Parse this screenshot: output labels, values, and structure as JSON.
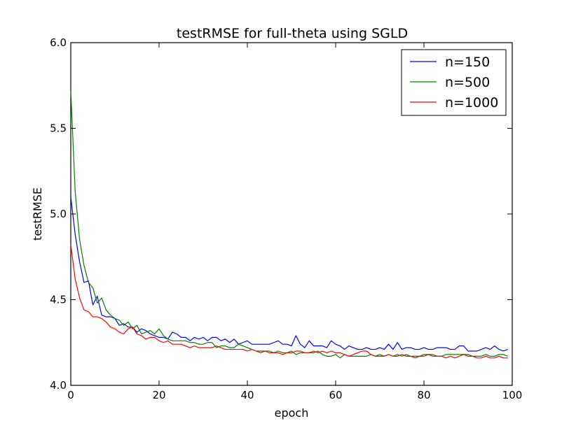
{
  "chart_data": {
    "type": "line",
    "title": "testRMSE for full-theta using SGLD",
    "xlabel": "epoch",
    "ylabel": "testRMSE",
    "xlim": [
      0,
      100
    ],
    "ylim": [
      4.0,
      6.0
    ],
    "x_ticks": [
      "0",
      "20",
      "40",
      "60",
      "80",
      "100"
    ],
    "y_ticks": [
      "4.0",
      "4.5",
      "5.0",
      "5.5",
      "6.0"
    ],
    "legend": "top-right",
    "grid": false,
    "series": [
      {
        "name": "n=150",
        "color": "#0000ff",
        "x": [
          0,
          1,
          2,
          3,
          4,
          5,
          6,
          7,
          8,
          9,
          10,
          11,
          12,
          13,
          14,
          15,
          16,
          17,
          18,
          19,
          20,
          21,
          22,
          23,
          24,
          25,
          26,
          27,
          28,
          29,
          30,
          31,
          32,
          33,
          34,
          35,
          36,
          37,
          38,
          39,
          40,
          41,
          42,
          43,
          44,
          45,
          46,
          47,
          48,
          49,
          50,
          51,
          52,
          53,
          54,
          55,
          56,
          57,
          58,
          59,
          60,
          61,
          62,
          63,
          64,
          65,
          66,
          67,
          68,
          69,
          70,
          71,
          72,
          73,
          74,
          75,
          76,
          77,
          78,
          79,
          80,
          81,
          82,
          83,
          84,
          85,
          86,
          87,
          88,
          89,
          90,
          91,
          92,
          93,
          94,
          95,
          96,
          97,
          98,
          99
        ],
        "values": [
          5.1,
          4.88,
          4.72,
          4.6,
          4.61,
          4.47,
          4.52,
          4.41,
          4.4,
          4.4,
          4.39,
          4.35,
          4.36,
          4.34,
          4.34,
          4.31,
          4.33,
          4.32,
          4.3,
          4.29,
          4.28,
          4.28,
          4.27,
          4.31,
          4.3,
          4.28,
          4.28,
          4.26,
          4.28,
          4.27,
          4.28,
          4.26,
          4.28,
          4.28,
          4.26,
          4.27,
          4.25,
          4.27,
          4.24,
          4.25,
          4.26,
          4.24,
          4.24,
          4.24,
          4.24,
          4.24,
          4.25,
          4.26,
          4.24,
          4.24,
          4.23,
          4.29,
          4.24,
          4.22,
          4.26,
          4.23,
          4.23,
          4.23,
          4.22,
          4.26,
          4.24,
          4.23,
          4.21,
          4.23,
          4.22,
          4.21,
          4.21,
          4.22,
          4.21,
          4.21,
          4.22,
          4.21,
          4.24,
          4.21,
          4.25,
          4.21,
          4.22,
          4.22,
          4.21,
          4.21,
          4.22,
          4.21,
          4.21,
          4.22,
          4.22,
          4.22,
          4.21,
          4.21,
          4.23,
          4.23,
          4.2,
          4.2,
          4.2,
          4.21,
          4.22,
          4.21,
          4.23,
          4.21,
          4.2,
          4.21
        ]
      },
      {
        "name": "n=500",
        "color": "#008000",
        "x": [
          0,
          1,
          2,
          3,
          4,
          5,
          6,
          7,
          8,
          9,
          10,
          11,
          12,
          13,
          14,
          15,
          16,
          17,
          18,
          19,
          20,
          21,
          22,
          23,
          24,
          25,
          26,
          27,
          28,
          29,
          30,
          31,
          32,
          33,
          34,
          35,
          36,
          37,
          38,
          39,
          40,
          41,
          42,
          43,
          44,
          45,
          46,
          47,
          48,
          49,
          50,
          51,
          52,
          53,
          54,
          55,
          56,
          57,
          58,
          59,
          60,
          61,
          62,
          63,
          64,
          65,
          66,
          67,
          68,
          69,
          70,
          71,
          72,
          73,
          74,
          75,
          76,
          77,
          78,
          79,
          80,
          81,
          82,
          83,
          84,
          85,
          86,
          87,
          88,
          89,
          90,
          91,
          92,
          93,
          94,
          95,
          96,
          97,
          98,
          99
        ],
        "values": [
          5.72,
          5.13,
          4.85,
          4.7,
          4.6,
          4.57,
          4.48,
          4.51,
          4.44,
          4.41,
          4.39,
          4.38,
          4.35,
          4.37,
          4.33,
          4.35,
          4.3,
          4.31,
          4.32,
          4.3,
          4.33,
          4.29,
          4.27,
          4.26,
          4.26,
          4.26,
          4.26,
          4.25,
          4.25,
          4.24,
          4.24,
          4.25,
          4.25,
          4.22,
          4.23,
          4.23,
          4.22,
          4.22,
          4.24,
          4.23,
          4.22,
          4.21,
          4.2,
          4.2,
          4.2,
          4.2,
          4.19,
          4.2,
          4.19,
          4.19,
          4.2,
          4.18,
          4.19,
          4.19,
          4.19,
          4.19,
          4.2,
          4.18,
          4.17,
          4.17,
          4.18,
          4.16,
          4.18,
          4.17,
          4.17,
          4.17,
          4.17,
          4.17,
          4.18,
          4.17,
          4.18,
          4.17,
          4.18,
          4.17,
          4.18,
          4.17,
          4.18,
          4.17,
          4.17,
          4.17,
          4.18,
          4.18,
          4.18,
          4.17,
          4.17,
          4.18,
          4.18,
          4.18,
          4.18,
          4.18,
          4.18,
          4.17,
          4.17,
          4.17,
          4.18,
          4.17,
          4.17,
          4.18,
          4.18,
          4.17
        ]
      },
      {
        "name": "n=1000",
        "color": "#ff0000",
        "x": [
          0,
          1,
          2,
          3,
          4,
          5,
          6,
          7,
          8,
          9,
          10,
          11,
          12,
          13,
          14,
          15,
          16,
          17,
          18,
          19,
          20,
          21,
          22,
          23,
          24,
          25,
          26,
          27,
          28,
          29,
          30,
          31,
          32,
          33,
          34,
          35,
          36,
          37,
          38,
          39,
          40,
          41,
          42,
          43,
          44,
          45,
          46,
          47,
          48,
          49,
          50,
          51,
          52,
          53,
          54,
          55,
          56,
          57,
          58,
          59,
          60,
          61,
          62,
          63,
          64,
          65,
          66,
          67,
          68,
          69,
          70,
          71,
          72,
          73,
          74,
          75,
          76,
          77,
          78,
          79,
          80,
          81,
          82,
          83,
          84,
          85,
          86,
          87,
          88,
          89,
          90,
          91,
          92,
          93,
          94,
          95,
          96,
          97,
          98,
          99
        ],
        "values": [
          4.82,
          4.62,
          4.51,
          4.44,
          4.43,
          4.4,
          4.4,
          4.39,
          4.37,
          4.34,
          4.33,
          4.31,
          4.3,
          4.33,
          4.34,
          4.3,
          4.29,
          4.27,
          4.28,
          4.28,
          4.26,
          4.25,
          4.26,
          4.24,
          4.24,
          4.24,
          4.23,
          4.22,
          4.23,
          4.22,
          4.22,
          4.22,
          4.22,
          4.23,
          4.22,
          4.21,
          4.21,
          4.21,
          4.21,
          4.21,
          4.2,
          4.21,
          4.2,
          4.19,
          4.2,
          4.19,
          4.19,
          4.19,
          4.18,
          4.19,
          4.19,
          4.2,
          4.2,
          4.19,
          4.19,
          4.2,
          4.19,
          4.2,
          4.19,
          4.2,
          4.19,
          4.19,
          4.18,
          4.17,
          4.18,
          4.19,
          4.2,
          4.2,
          4.18,
          4.17,
          4.17,
          4.17,
          4.18,
          4.17,
          4.17,
          4.18,
          4.17,
          4.17,
          4.16,
          4.17,
          4.17,
          4.18,
          4.17,
          4.17,
          4.17,
          4.16,
          4.17,
          4.16,
          4.17,
          4.18,
          4.17,
          4.17,
          4.16,
          4.16,
          4.17,
          4.16,
          4.16,
          4.17,
          4.16,
          4.16
        ]
      }
    ]
  }
}
